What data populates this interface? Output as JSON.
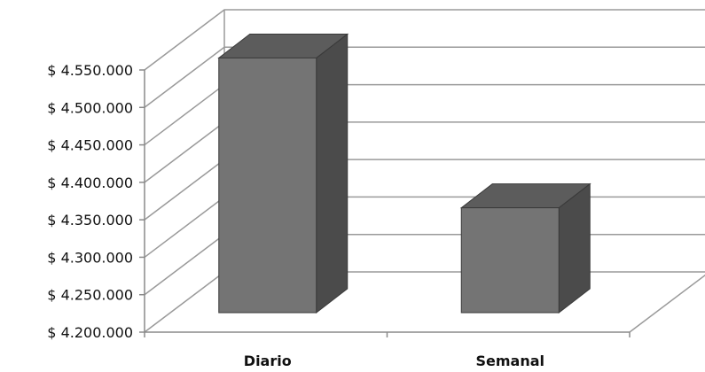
{
  "chart_data": {
    "type": "bar",
    "style": "3d-column",
    "categories": [
      "Diario",
      "Semanal"
    ],
    "values": [
      4540000,
      4340000
    ],
    "ylim": [
      4200000,
      4550000
    ],
    "yticks": [
      4200000,
      4250000,
      4300000,
      4350000,
      4400000,
      4450000,
      4500000,
      4550000
    ],
    "ytick_labels": [
      "$ 4.200.000",
      "$ 4.250.000",
      "$ 4.300.000",
      "$ 4.350.000",
      "$ 4.400.000",
      "$ 4.450.000",
      "$ 4.500.000",
      "$ 4.550.000"
    ],
    "grid": true,
    "legend": "none",
    "colors": {
      "front": "#747474",
      "side": "#4b4b4b",
      "top": "#5c5c5c",
      "edge": "#3a3a3a"
    }
  }
}
